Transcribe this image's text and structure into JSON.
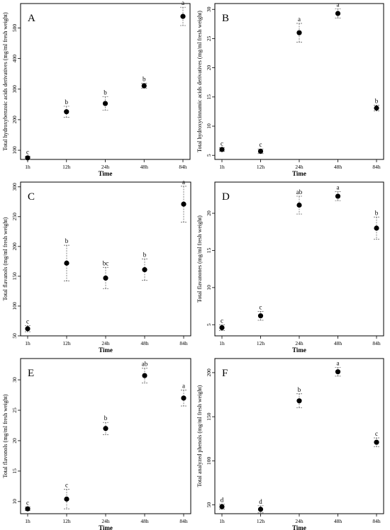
{
  "chart_data": [
    {
      "type": "scatter",
      "panel": "A",
      "xlabel": "Time",
      "ylabel": "Total hydroxybenzoic acids derivatives (mg/ml fresh weight)",
      "categories": [
        "1h",
        "12h",
        "24h",
        "48h",
        "84h"
      ],
      "values": [
        75,
        226,
        253,
        311,
        538
      ],
      "errors": [
        5,
        18,
        22,
        8,
        30
      ],
      "letters": [
        "c",
        "b",
        "b",
        "b",
        "a"
      ],
      "ylim": [
        70,
        580
      ],
      "yticks": [
        100,
        200,
        300,
        400,
        500
      ]
    },
    {
      "type": "scatter",
      "panel": "B",
      "xlabel": "Time",
      "ylabel": "Total hydroxycinnamic acids derivatives (mg/ml fresh weight)",
      "categories": [
        "1h",
        "12h",
        "24h",
        "48h",
        "84h"
      ],
      "values": [
        6,
        5.7,
        26,
        29.3,
        13.1
      ],
      "errors": [
        0.3,
        0.4,
        1.6,
        0.8,
        0.5
      ],
      "letters": [
        "c",
        "c",
        "a",
        "a",
        "b"
      ],
      "ylim": [
        4.3,
        31
      ],
      "yticks": [
        5,
        10,
        15,
        20,
        25,
        30
      ]
    },
    {
      "type": "scatter",
      "panel": "C",
      "xlabel": "Time",
      "ylabel": "Total flavanols (mg/ml fresh weight)",
      "categories": [
        "1h",
        "12h",
        "24h",
        "48h",
        "84h"
      ],
      "values": [
        62,
        172,
        147,
        161,
        271
      ],
      "errors": [
        5,
        30,
        18,
        18,
        30
      ],
      "letters": [
        "c",
        "b",
        "bc",
        "b",
        "a"
      ],
      "ylim": [
        50,
        308
      ],
      "yticks": [
        50,
        100,
        150,
        200,
        250,
        300
      ]
    },
    {
      "type": "scatter",
      "panel": "D",
      "xlabel": "Time",
      "ylabel": "Total flavanones (mg/ml fresh weight)",
      "categories": [
        "1h",
        "12h",
        "24h",
        "48h",
        "84h"
      ],
      "values": [
        4.6,
        6.2,
        21.1,
        22.3,
        18
      ],
      "errors": [
        0.4,
        0.6,
        1.2,
        0.6,
        1.5
      ],
      "letters": [
        "c",
        "c",
        "ab",
        "a",
        "b"
      ],
      "ylim": [
        3.5,
        24.2
      ],
      "yticks": [
        5,
        10,
        15,
        20
      ]
    },
    {
      "type": "scatter",
      "panel": "E",
      "xlabel": "Time",
      "ylabel": "Total flavonols (mg/ml fresh weight)",
      "categories": [
        "1h",
        "12h",
        "24h",
        "48h",
        "84h"
      ],
      "values": [
        8.8,
        10.4,
        22,
        30.7,
        27
      ],
      "errors": [
        0.3,
        1.6,
        1,
        1.2,
        1.3
      ],
      "letters": [
        "c",
        "c",
        "b",
        "ab",
        "a"
      ],
      "ylim": [
        8,
        33.5
      ],
      "yticks": [
        10,
        15,
        20,
        25,
        30
      ]
    },
    {
      "type": "scatter",
      "panel": "F",
      "xlabel": "Time",
      "ylabel": "Total analyzed phenols (mg/ml fresh weight)",
      "categories": [
        "1h",
        "12h",
        "24h",
        "48h",
        "84h"
      ],
      "values": [
        48,
        45,
        168,
        201,
        121
      ],
      "errors": [
        3,
        4,
        8,
        5,
        5
      ],
      "letters": [
        "d",
        "d",
        "b",
        "a",
        "c"
      ],
      "ylim": [
        40,
        216
      ],
      "yticks": [
        50,
        100,
        150,
        200
      ]
    }
  ]
}
